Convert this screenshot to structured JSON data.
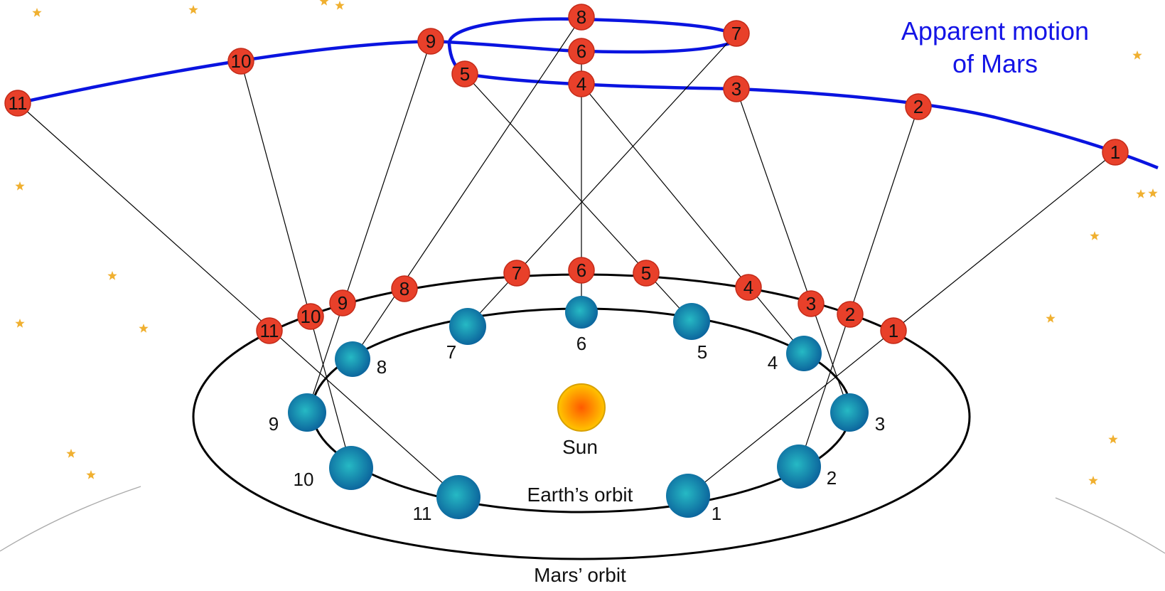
{
  "title_line1": "Apparent motion",
  "title_line2": "of Mars",
  "sun_label": "Sun",
  "earth_orbit_label": "Earth’s orbit",
  "mars_orbit_label": "Mars’ orbit",
  "colors": {
    "title": "#1414e6",
    "apparent_path": "#0a14e0",
    "mars_fill": "#e8402a",
    "mars_stroke": "#c42a18",
    "earth_inner": "#1fa3b8",
    "earth_outer": "#0a5f9a",
    "sun_inner": "#ff6a00",
    "sun_outer": "#ffd400",
    "star": "#f0b030",
    "orbit": "#000000"
  },
  "earth_positions": [
    "1",
    "2",
    "3",
    "4",
    "5",
    "6",
    "7",
    "8",
    "9",
    "10",
    "11"
  ],
  "mars_positions": [
    "1",
    "2",
    "3",
    "4",
    "5",
    "6",
    "7",
    "8",
    "9",
    "10",
    "11"
  ],
  "apparent_positions": [
    "1",
    "2",
    "3",
    "4",
    "5",
    "6",
    "7",
    "8",
    "9",
    "10",
    "11"
  ]
}
